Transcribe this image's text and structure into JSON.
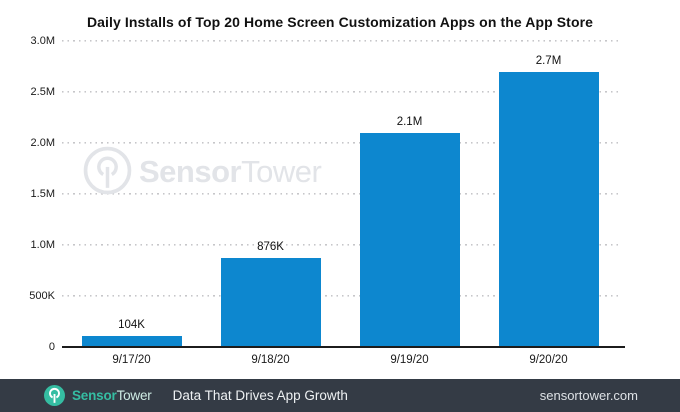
{
  "chart": {
    "title": "Daily Installs of Top 20 Home Screen Customization Apps on the App Store"
  },
  "chart_data": {
    "type": "bar",
    "title": "Daily Installs of Top 20 Home Screen Customization Apps on the App Store",
    "categories": [
      "9/17/20",
      "9/18/20",
      "9/19/20",
      "9/20/20"
    ],
    "values": [
      104000,
      876000,
      2100000,
      2700000
    ],
    "value_labels": [
      "104K",
      "876K",
      "2.1M",
      "2.7M"
    ],
    "yticks": [
      {
        "label": "3.0M",
        "value": 3000000
      },
      {
        "label": "2.5M",
        "value": 2500000
      },
      {
        "label": "2.0M",
        "value": 2000000
      },
      {
        "label": "1.5M",
        "value": 1500000
      },
      {
        "label": "1.0M",
        "value": 1000000
      },
      {
        "label": "500K",
        "value": 500000
      },
      {
        "label": "0",
        "value": 0
      }
    ],
    "ylim": [
      0,
      3000000
    ],
    "xlabel": "",
    "ylabel": "",
    "grid": "horizontal-dotted",
    "legend": "none",
    "bar_color": "#0d87cf",
    "gridline_color": "#c6c6c9",
    "axis_color": "#1c1c1c"
  },
  "watermark": {
    "brand_bold": "Sensor",
    "brand_light": "Tower",
    "color": "#e2e4e8"
  },
  "footer": {
    "brand_bold": "Sensor",
    "brand_light": "Tower",
    "tagline": "Data That Drives App Growth",
    "website": "sensortower.com",
    "background": "#343b45",
    "accent": "#35bda2"
  }
}
